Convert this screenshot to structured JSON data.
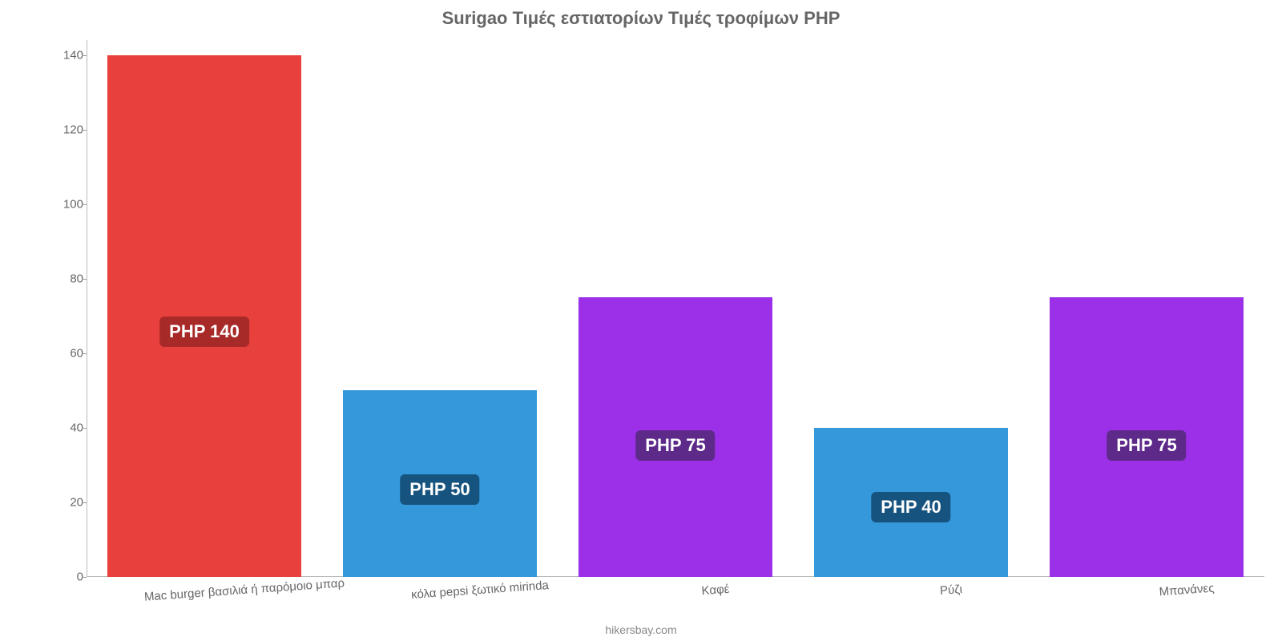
{
  "chart": {
    "type": "bar",
    "title": "Surigao Τιμές εστιατορίων Τιμές τροφίμων PHP",
    "title_fontsize": 22,
    "title_color": "#666666",
    "background_color": "#ffffff",
    "axis_color": "#bbbbbb",
    "tick_color": "#999999",
    "label_color": "#666666",
    "label_fontsize": 15,
    "tick_fontsize": 15,
    "ylim": [
      0,
      144
    ],
    "ytick_step": 20,
    "yticks": [
      0,
      20,
      40,
      60,
      80,
      100,
      120,
      140
    ],
    "bar_width": 0.82,
    "categories": [
      "Mac burger βασιλιά ή παρόμοιο μπαρ",
      "κόλα pepsi ξωτικό mirinda",
      "Καφέ",
      "Ρύζι",
      "Μπανάνες"
    ],
    "values": [
      140,
      50,
      75,
      40,
      75
    ],
    "value_prefix": "PHP ",
    "value_label_fontsize": 22,
    "bar_colors": [
      "#e8403c",
      "#3498db",
      "#9b30e8",
      "#3498db",
      "#9b30e8"
    ],
    "value_label_bg": [
      "#a82a28",
      "#16537e",
      "#5e2a8a",
      "#16537e",
      "#5e2a8a"
    ],
    "value_label_text_color": "#ffffff",
    "x_label_rotation_deg": -4
  },
  "attribution": {
    "text": "hikersbay.com",
    "fontsize": 14,
    "color": "#888888"
  }
}
